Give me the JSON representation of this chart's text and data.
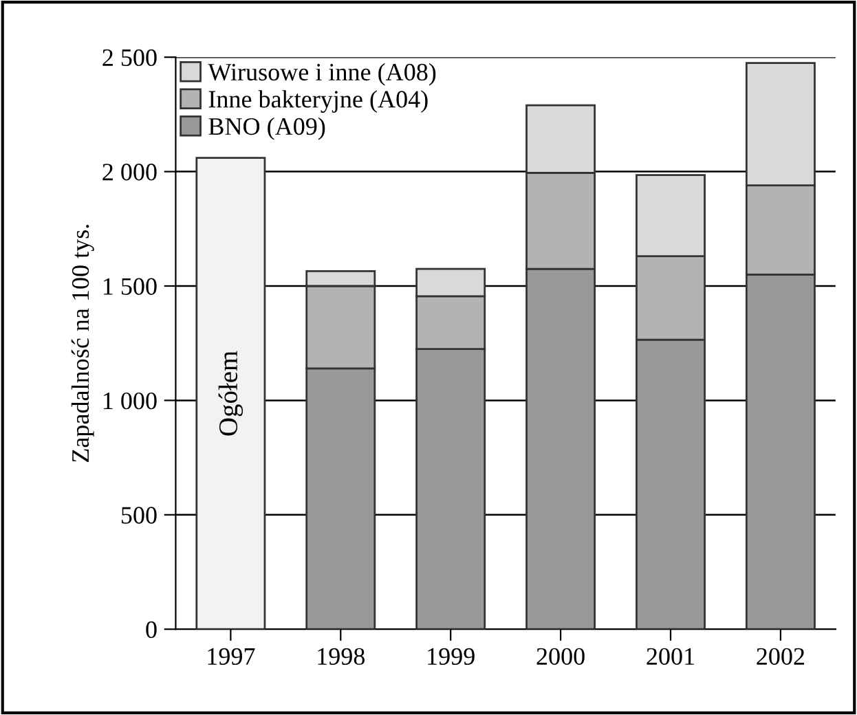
{
  "chart_data": {
    "type": "bar",
    "stacked": true,
    "ylabel": "Zapadalność na 100 tys.",
    "categories": [
      "1997",
      "1998",
      "1999",
      "2000",
      "2001",
      "2002"
    ],
    "series": [
      {
        "name": "Ogółem",
        "color": "#f2f2f2",
        "values": [
          2060,
          null,
          null,
          null,
          null,
          null
        ]
      },
      {
        "name": "BNO (A09)",
        "color": "#999999",
        "values": [
          null,
          1140,
          1225,
          1575,
          1265,
          1550
        ]
      },
      {
        "name": "Inne bakteryjne (A04)",
        "color": "#b3b3b3",
        "values": [
          null,
          360,
          230,
          420,
          365,
          390
        ]
      },
      {
        "name": "Wirusowe i inne (A08)",
        "color": "#d9d9d9",
        "values": [
          null,
          65,
          120,
          295,
          355,
          535
        ]
      }
    ],
    "ylim": [
      0,
      2500
    ],
    "yticks": [
      0,
      500,
      {
        "value": 1000,
        "label": "1 000"
      },
      {
        "value": 1500,
        "label": "1 500"
      },
      {
        "value": 2000,
        "label": "2 000"
      },
      {
        "value": 2500,
        "label": "2 500"
      }
    ],
    "grid": "y",
    "legend": "top left"
  }
}
